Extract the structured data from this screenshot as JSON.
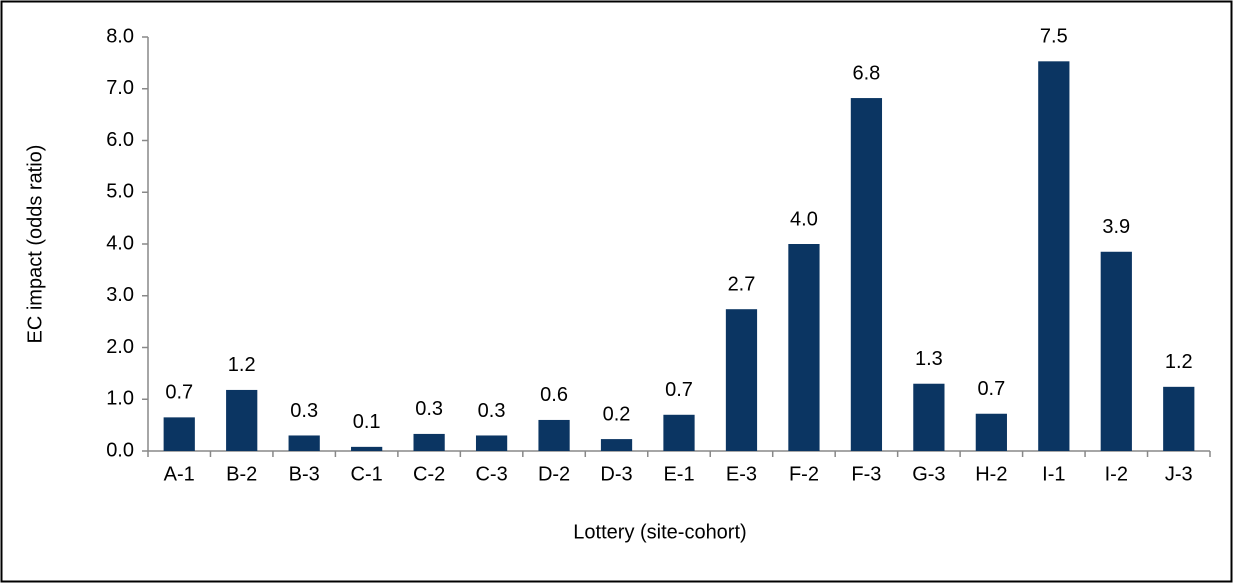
{
  "chart_data": {
    "type": "bar",
    "x_label": "Lottery (site-cohort)",
    "y_label": "EC impact (odds ratio)",
    "categories": [
      "A-1",
      "B-2",
      "B-3",
      "C-1",
      "C-2",
      "C-3",
      "D-2",
      "D-3",
      "E-1",
      "E-3",
      "F-2",
      "F-3",
      "G-3",
      "H-2",
      "I-1",
      "I-2",
      "J-3"
    ],
    "values": [
      0.65,
      1.18,
      0.3,
      0.08,
      0.33,
      0.3,
      0.6,
      0.23,
      0.7,
      2.74,
      4.0,
      6.82,
      1.3,
      0.72,
      7.53,
      3.85,
      1.24
    ],
    "value_labels": [
      "0.7",
      "1.2",
      "0.3",
      "0.1",
      "0.3",
      "0.3",
      "0.6",
      "0.2",
      "0.7",
      "2.7",
      "4.0",
      "6.8",
      "1.3",
      "0.7",
      "7.5",
      "3.9",
      "1.2"
    ],
    "color": "#0b3562",
    "ylim": [
      0,
      8
    ],
    "yticks": [
      {
        "value": 0,
        "label": "0.0"
      },
      {
        "value": 1,
        "label": "1.0"
      },
      {
        "value": 2,
        "label": "2.0"
      },
      {
        "value": 3,
        "label": "3.0"
      },
      {
        "value": 4,
        "label": "4.0"
      },
      {
        "value": 5,
        "label": "5.0"
      },
      {
        "value": 6,
        "label": "6.0"
      },
      {
        "value": 7,
        "label": "7.0"
      },
      {
        "value": 8,
        "label": "8.0"
      }
    ],
    "grid": false
  }
}
